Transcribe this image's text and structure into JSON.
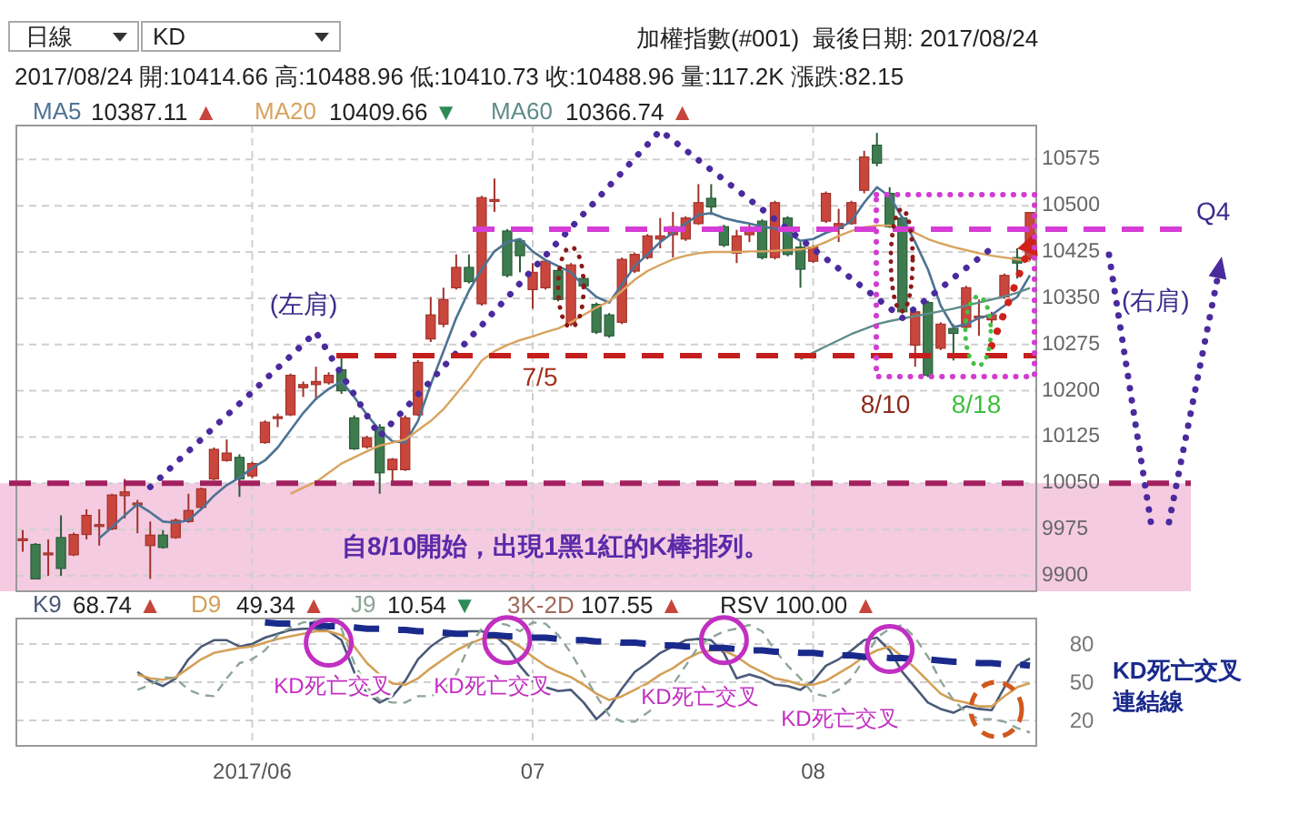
{
  "chart_data": [
    {
      "type": "candlestick",
      "title": "加權指數(#001)  最後日期: 2017/08/24",
      "subtitle": "2017/08/24 開:10414.66 高:10488.96 低:10410.73 收:10488.96 量:117.2K 漲跌:82.15",
      "categories": [
        null,
        null,
        null,
        null,
        null,
        null,
        null,
        null,
        null,
        null,
        null,
        null,
        null,
        null,
        null,
        null,
        null,
        null,
        "2017/06",
        null,
        null,
        null,
        null,
        null,
        null,
        null,
        null,
        null,
        null,
        null,
        null,
        null,
        null,
        null,
        null,
        null,
        null,
        null,
        null,
        null,
        "07",
        null,
        null,
        null,
        null,
        null,
        null,
        null,
        null,
        null,
        null,
        null,
        null,
        null,
        null,
        null,
        null,
        null,
        null,
        null,
        null,
        null,
        "08",
        null,
        null,
        null,
        null,
        null,
        null,
        null,
        null,
        null,
        null,
        null,
        null,
        null,
        null,
        null,
        null,
        null
      ],
      "ohlc": [
        [
          9958,
          9974,
          9939,
          9960
        ],
        [
          9951,
          9953,
          9895,
          9895
        ],
        [
          9935,
          9959,
          9900,
          9937
        ],
        [
          9962,
          9998,
          9900,
          9912
        ],
        [
          9934,
          9970,
          9932,
          9967
        ],
        [
          9967,
          10008,
          9959,
          9998
        ],
        [
          9980,
          10008,
          9949,
          9983
        ],
        [
          9976,
          10033,
          9974,
          10031
        ],
        [
          10030,
          10057,
          9993,
          10036
        ],
        [
          10015,
          10023,
          9969,
          10018
        ],
        [
          9949,
          9988,
          9895,
          9966
        ],
        [
          9966,
          9974,
          9944,
          9946
        ],
        [
          9962,
          9993,
          9960,
          9990
        ],
        [
          9988,
          10033,
          9986,
          10006
        ],
        [
          10011,
          10043,
          10009,
          10041
        ],
        [
          10057,
          10108,
          10055,
          10105
        ],
        [
          10087,
          10121,
          10085,
          10099
        ],
        [
          10092,
          10097,
          10028,
          10057
        ],
        [
          10062,
          10085,
          10058,
          10082
        ],
        [
          10116,
          10152,
          10114,
          10149
        ],
        [
          10155,
          10163,
          10141,
          10158
        ],
        [
          10161,
          10228,
          10159,
          10225
        ],
        [
          10205,
          10215,
          10190,
          10210
        ],
        [
          10210,
          10239,
          10185,
          10215
        ],
        [
          10213,
          10230,
          10210,
          10225
        ],
        [
          10234,
          10259,
          10195,
          10200
        ],
        [
          10156,
          10160,
          10104,
          10106
        ],
        [
          10109,
          10127,
          10106,
          10124
        ],
        [
          10141,
          10146,
          10033,
          10067
        ],
        [
          10072,
          10091,
          10047,
          10089
        ],
        [
          10072,
          10160,
          10070,
          10156
        ],
        [
          10161,
          10250,
          10159,
          10246
        ],
        [
          10284,
          10352,
          10279,
          10323
        ],
        [
          10308,
          10367,
          10303,
          10348
        ],
        [
          10367,
          10421,
          10364,
          10400
        ],
        [
          10400,
          10421,
          10374,
          10377
        ],
        [
          10341,
          10516,
          10338,
          10513
        ],
        [
          10508,
          10544,
          10490,
          10510
        ],
        [
          10459,
          10462,
          10384,
          10387
        ],
        [
          10443,
          10446,
          10392,
          10419
        ],
        [
          10364,
          10407,
          10333,
          10392
        ],
        [
          10367,
          10413,
          10364,
          10410
        ],
        [
          10395,
          10398,
          10345,
          10348
        ],
        [
          10308,
          10407,
          10305,
          10404
        ],
        [
          10382,
          10385,
          10367,
          10370
        ],
        [
          10340,
          10343,
          10292,
          10295
        ],
        [
          10323,
          10326,
          10286,
          10289
        ],
        [
          10311,
          10416,
          10308,
          10413
        ],
        [
          10394,
          10424,
          10391,
          10421
        ],
        [
          10416,
          10454,
          10413,
          10451
        ],
        [
          10446,
          10480,
          10431,
          10451
        ],
        [
          10453,
          10490,
          10416,
          10466
        ],
        [
          10446,
          10483,
          10443,
          10480
        ],
        [
          10471,
          10535,
          10469,
          10505
        ],
        [
          10512,
          10535,
          10485,
          10498
        ],
        [
          10466,
          10469,
          10433,
          10436
        ],
        [
          10423,
          10461,
          10407,
          10451
        ],
        [
          10453,
          10471,
          10441,
          10459
        ],
        [
          10475,
          10478,
          10413,
          10416
        ],
        [
          10416,
          10508,
          10413,
          10505
        ],
        [
          10480,
          10483,
          10418,
          10421
        ],
        [
          10433,
          10441,
          10367,
          10397
        ],
        [
          10410,
          10436,
          10407,
          10433
        ],
        [
          10475,
          10523,
          10472,
          10520
        ],
        [
          10463,
          10495,
          10441,
          10471
        ],
        [
          10471,
          10508,
          10469,
          10505
        ],
        [
          10525,
          10589,
          10520,
          10579
        ],
        [
          10598,
          10618,
          10564,
          10569
        ],
        [
          10520,
          10530,
          10464,
          10466
        ],
        [
          10480,
          10483,
          10325,
          10328
        ],
        [
          10274,
          10333,
          10239,
          10328
        ],
        [
          10343,
          10346,
          10222,
          10225
        ],
        [
          10269,
          10311,
          10266,
          10308
        ],
        [
          10301,
          10308,
          10249,
          10293
        ],
        [
          10303,
          10370,
          10300,
          10367
        ],
        [
          10318,
          10348,
          10289,
          10321
        ],
        [
          10315,
          10328,
          10310,
          10323
        ],
        [
          10352,
          10390,
          10349,
          10387
        ],
        [
          10416,
          10431,
          10382,
          10407
        ],
        [
          10414.66,
          10488.96,
          10410.73,
          10488.96
        ]
      ],
      "series": [
        {
          "name": "MA5",
          "type": "line",
          "color": "#4d7394",
          "values": [
            null,
            null,
            null,
            null,
            null,
            null,
            9961,
            9979,
            9998,
            10016,
            10003,
            9988,
            9986,
            9990,
            10008,
            10030,
            10047,
            10059,
            10075,
            10087,
            10108,
            10136,
            10164,
            10187,
            10203,
            10215,
            10190,
            10161,
            10136,
            10118,
            10116,
            10151,
            10210,
            10264,
            10318,
            10362,
            10397,
            10426,
            10441,
            10446,
            10426,
            10412,
            10402,
            10392,
            10370,
            10352,
            10343,
            10372,
            10402,
            10421,
            10441,
            10456,
            10471,
            10485,
            10488,
            10480,
            10475,
            10471,
            10466,
            10463,
            10456,
            10443,
            10446,
            10456,
            10463,
            10475,
            10505,
            10530,
            10515,
            10480,
            10441,
            10397,
            10338,
            10303,
            10308,
            10318,
            10323,
            10338,
            10352,
            10387.11
          ]
        },
        {
          "name": "MA20",
          "type": "line",
          "color": "#d9a35e",
          "values": [
            null,
            null,
            null,
            null,
            null,
            null,
            null,
            null,
            null,
            null,
            null,
            null,
            null,
            null,
            null,
            null,
            null,
            null,
            null,
            null,
            null,
            10033,
            10043,
            10052,
            10067,
            10082,
            10092,
            10102,
            10111,
            10116,
            10121,
            10136,
            10151,
            10170,
            10195,
            10220,
            10249,
            10264,
            10274,
            10282,
            10288,
            10295,
            10301,
            10311,
            10323,
            10335,
            10345,
            10362,
            10380,
            10394,
            10404,
            10413,
            10419,
            10423,
            10425,
            10425,
            10425,
            10426,
            10426,
            10427,
            10428,
            10429,
            10433,
            10441,
            10451,
            10459,
            10465,
            10468,
            10468,
            10463,
            10456,
            10446,
            10439,
            10433,
            10428,
            10423,
            10419,
            10416,
            10413,
            10409.66
          ]
        },
        {
          "name": "MA60",
          "type": "line",
          "color": "#5f8c8a",
          "values": [
            null,
            null,
            null,
            null,
            null,
            null,
            null,
            null,
            null,
            null,
            null,
            null,
            null,
            null,
            null,
            null,
            null,
            null,
            null,
            null,
            null,
            null,
            null,
            null,
            null,
            null,
            null,
            null,
            null,
            null,
            null,
            null,
            null,
            null,
            null,
            null,
            null,
            null,
            null,
            null,
            null,
            null,
            null,
            null,
            null,
            null,
            null,
            null,
            null,
            null,
            null,
            null,
            null,
            null,
            null,
            null,
            null,
            null,
            null,
            null,
            null,
            10251,
            10262,
            10272,
            10282,
            10292,
            10300,
            10308,
            10313,
            10317,
            10321,
            10325,
            10329,
            10333,
            10338,
            10343,
            10348,
            10353,
            10359,
            10366.74
          ]
        },
        {
          "type": "line",
          "color": "#4b2a9e",
          "line_style": "dotted",
          "values": [
            null,
            null,
            null,
            null,
            null,
            null,
            null,
            null,
            null,
            null,
            10044,
            10063,
            10083,
            10102,
            10121,
            10141,
            10160,
            10179,
            10198,
            10218,
            10237,
            10256,
            10276,
            10295,
            10261,
            10227,
            10194,
            10160,
            10126,
            10149,
            10171,
            10194,
            10216,
            10239,
            10261,
            10284,
            10306,
            10329,
            10351,
            10374,
            10397,
            10419,
            10442,
            10464,
            10487,
            10509,
            10532,
            10554,
            10577,
            10599,
            10622,
            10606,
            10590,
            10574,
            10558,
            10542,
            10526,
            10510,
            10494,
            10478,
            10462,
            10446,
            10430,
            10414,
            10398,
            10382,
            10366,
            10350,
            10334,
            10318,
            10334,
            10350,
            10366,
            10383,
            10399,
            10415,
            10431,
            null,
            null,
            null
          ]
        },
        {
          "type": "line",
          "color": "#d0201a",
          "line_style": "dotted",
          "values": [
            null,
            null,
            null,
            null,
            null,
            null,
            null,
            null,
            null,
            null,
            null,
            null,
            null,
            null,
            null,
            null,
            null,
            null,
            null,
            null,
            null,
            null,
            null,
            null,
            null,
            null,
            null,
            null,
            null,
            null,
            null,
            null,
            null,
            null,
            null,
            null,
            null,
            null,
            null,
            null,
            null,
            null,
            null,
            null,
            null,
            null,
            null,
            null,
            null,
            null,
            null,
            null,
            null,
            null,
            null,
            null,
            null,
            null,
            null,
            null,
            null,
            null,
            null,
            null,
            null,
            null,
            null,
            null,
            null,
            null,
            null,
            null,
            null,
            null,
            null,
            null,
            10273,
            10327,
            10380,
            10434
          ]
        },
        {
          "type": "scatter",
          "marker": "circle",
          "line_style": "dotted",
          "color": "#8b1a1a",
          "values": [
            null,
            null,
            null,
            null,
            null,
            null,
            null,
            null,
            null,
            null,
            null,
            null,
            null,
            null,
            null,
            null,
            null,
            null,
            null,
            null,
            null,
            null,
            null,
            null,
            null,
            null,
            null,
            null,
            null,
            null,
            null,
            null,
            null,
            null,
            null,
            null,
            null,
            null,
            null,
            null,
            null,
            null,
            null,
            10368,
            null,
            null,
            null,
            null,
            null,
            null,
            null,
            null,
            null,
            null,
            null,
            null,
            null,
            null,
            null,
            null,
            null,
            null,
            null,
            null,
            null,
            null,
            null,
            null,
            null,
            null,
            null,
            null,
            null,
            null,
            null,
            null,
            null,
            null,
            null,
            null
          ]
        }
      ],
      "ylim": [
        9875,
        10630
      ],
      "yticks": [
        9900,
        9975,
        10050,
        10125,
        10200,
        10275,
        10350,
        10425,
        10500,
        10575
      ],
      "grid": true,
      "legend": "top left",
      "tick_labels": "y",
      "ref_lines": [
        {
          "axis": "y",
          "value": 10462,
          "color": "#d63cd6",
          "line_style": "dashed"
        },
        {
          "axis": "y",
          "value": 10257,
          "color": "#c41e1e",
          "line_style": "dashed"
        },
        {
          "axis": "y",
          "value": 10050,
          "color": "#a3205f",
          "line_style": "dashed"
        }
      ],
      "bands": [
        {
          "axis": "y",
          "from": 9875,
          "to": 10050,
          "color": "#f4cbe1"
        }
      ],
      "annotations": [
        "日線",
        "KD",
        "10387.11 ▲",
        "10409.66 ▼",
        "10366.74 ▲",
        "(左肩)",
        "7/5",
        "8/10",
        "8/18",
        "(右肩)",
        "Q4",
        "自8/10開始，出現1黑1紅的K棒排列。"
      ]
    },
    {
      "type": "line",
      "categories": [
        null,
        null,
        null,
        null,
        null,
        null,
        null,
        null,
        null,
        null,
        null,
        null,
        null,
        null,
        null,
        null,
        null,
        null,
        "2017/06",
        null,
        null,
        null,
        null,
        null,
        null,
        null,
        null,
        null,
        null,
        null,
        null,
        null,
        null,
        null,
        null,
        null,
        null,
        null,
        null,
        null,
        "07",
        null,
        null,
        null,
        null,
        null,
        null,
        null,
        null,
        null,
        null,
        null,
        null,
        null,
        null,
        null,
        null,
        null,
        null,
        null,
        null,
        null,
        "08",
        null,
        null,
        null,
        null,
        null,
        null,
        null,
        null,
        null,
        null,
        null,
        null,
        null,
        null,
        null,
        null,
        null
      ],
      "series": [
        {
          "name": "K9",
          "color": "#4a5a78",
          "values": [
            null,
            null,
            null,
            null,
            null,
            null,
            null,
            null,
            null,
            58,
            51,
            47,
            53,
            68,
            78,
            83,
            83,
            78,
            80,
            85,
            88,
            91,
            92,
            92,
            90,
            83,
            58,
            41,
            34,
            39,
            51,
            68,
            78,
            85,
            88,
            90,
            90,
            87,
            78,
            63,
            51,
            46,
            43,
            44,
            34,
            21,
            30,
            45,
            58,
            65,
            73,
            78,
            83,
            84,
            83,
            73,
            53,
            56,
            53,
            48,
            47,
            44,
            51,
            63,
            68,
            75,
            83,
            85,
            75,
            58,
            46,
            34,
            29,
            26,
            31,
            29,
            28,
            46,
            63,
            68.74
          ]
        },
        {
          "name": "D9",
          "color": "#d4a056",
          "values": [
            null,
            null,
            null,
            null,
            null,
            null,
            null,
            null,
            null,
            56,
            53,
            52,
            54,
            61,
            68,
            73,
            75,
            77,
            78,
            81,
            84,
            86,
            88,
            90,
            90,
            87,
            78,
            65,
            56,
            49,
            48,
            53,
            61,
            68,
            75,
            80,
            84,
            85,
            84,
            78,
            70,
            63,
            58,
            54,
            48,
            41,
            36,
            39,
            44,
            49,
            56,
            61,
            68,
            73,
            75,
            75,
            70,
            63,
            58,
            53,
            51,
            48,
            48,
            51,
            57,
            63,
            70,
            75,
            78,
            70,
            61,
            51,
            41,
            36,
            34,
            31,
            31,
            39,
            46,
            49.34
          ]
        },
        {
          "name": "J9",
          "color": "#8da596",
          "line_style": "dashed",
          "values": [
            null,
            null,
            null,
            null,
            null,
            null,
            null,
            null,
            null,
            44,
            48,
            54,
            53,
            44,
            40,
            39,
            53,
            65,
            68,
            75,
            87,
            93,
            97,
            98,
            99,
            92,
            65,
            46,
            36,
            34,
            34,
            39,
            39,
            44,
            56,
            78,
            92,
            97,
            95,
            90,
            97,
            96,
            87,
            73,
            56,
            39,
            24,
            19,
            19,
            26,
            34,
            48,
            63,
            78,
            85,
            90,
            92,
            95,
            90,
            75,
            63,
            53,
            41,
            39,
            44,
            53,
            68,
            85,
            92,
            95,
            85,
            70,
            51,
            36,
            26,
            21,
            21,
            19,
            14,
            10.54
          ]
        },
        {
          "color": "#1a2a8c",
          "line_style": "dashed",
          "values": [
            null,
            null,
            null,
            null,
            null,
            null,
            null,
            null,
            null,
            null,
            null,
            null,
            null,
            null,
            null,
            null,
            null,
            null,
            null,
            97,
            96,
            96,
            95,
            95,
            94,
            94,
            93,
            92,
            92,
            91,
            91,
            90,
            90,
            89,
            88,
            88,
            87,
            87,
            86,
            86,
            85,
            85,
            84,
            83,
            83,
            82,
            82,
            81,
            81,
            80,
            79,
            79,
            78,
            78,
            77,
            77,
            76,
            75,
            75,
            74,
            74,
            73,
            73,
            72,
            71,
            71,
            70,
            70,
            69,
            69,
            68,
            68,
            67,
            66,
            66,
            65,
            65,
            64,
            64,
            63
          ]
        },
        {
          "type": "scatter",
          "marker": "circle",
          "color": "#c02fc2",
          "values": [
            null,
            null,
            null,
            null,
            null,
            null,
            null,
            null,
            null,
            null,
            null,
            null,
            null,
            null,
            null,
            null,
            null,
            null,
            null,
            null,
            null,
            null,
            null,
            null,
            81,
            null,
            null,
            null,
            null,
            null,
            null,
            null,
            null,
            null,
            null,
            null,
            null,
            null,
            83,
            null,
            null,
            null,
            null,
            null,
            null,
            null,
            null,
            null,
            null,
            null,
            null,
            null,
            null,
            null,
            null,
            83,
            null,
            null,
            null,
            null,
            null,
            null,
            null,
            null,
            null,
            null,
            null,
            null,
            76,
            null,
            null,
            null,
            null,
            null,
            null,
            null,
            null,
            null,
            null,
            null
          ]
        }
      ],
      "ylim": [
        0,
        100
      ],
      "yticks": [
        20,
        50,
        80
      ],
      "grid": true,
      "legend": "top left",
      "annotations": [
        "68.74 ▲",
        "49.34 ▲",
        "10.54 ▼",
        "3K-2D 107.55 ▲",
        "RSV 100.00 ▲",
        "KD死亡交叉",
        "KD死亡交叉",
        "KD死亡交叉",
        "KD死亡交叉",
        "KD死亡交叉連結線"
      ]
    }
  ]
}
